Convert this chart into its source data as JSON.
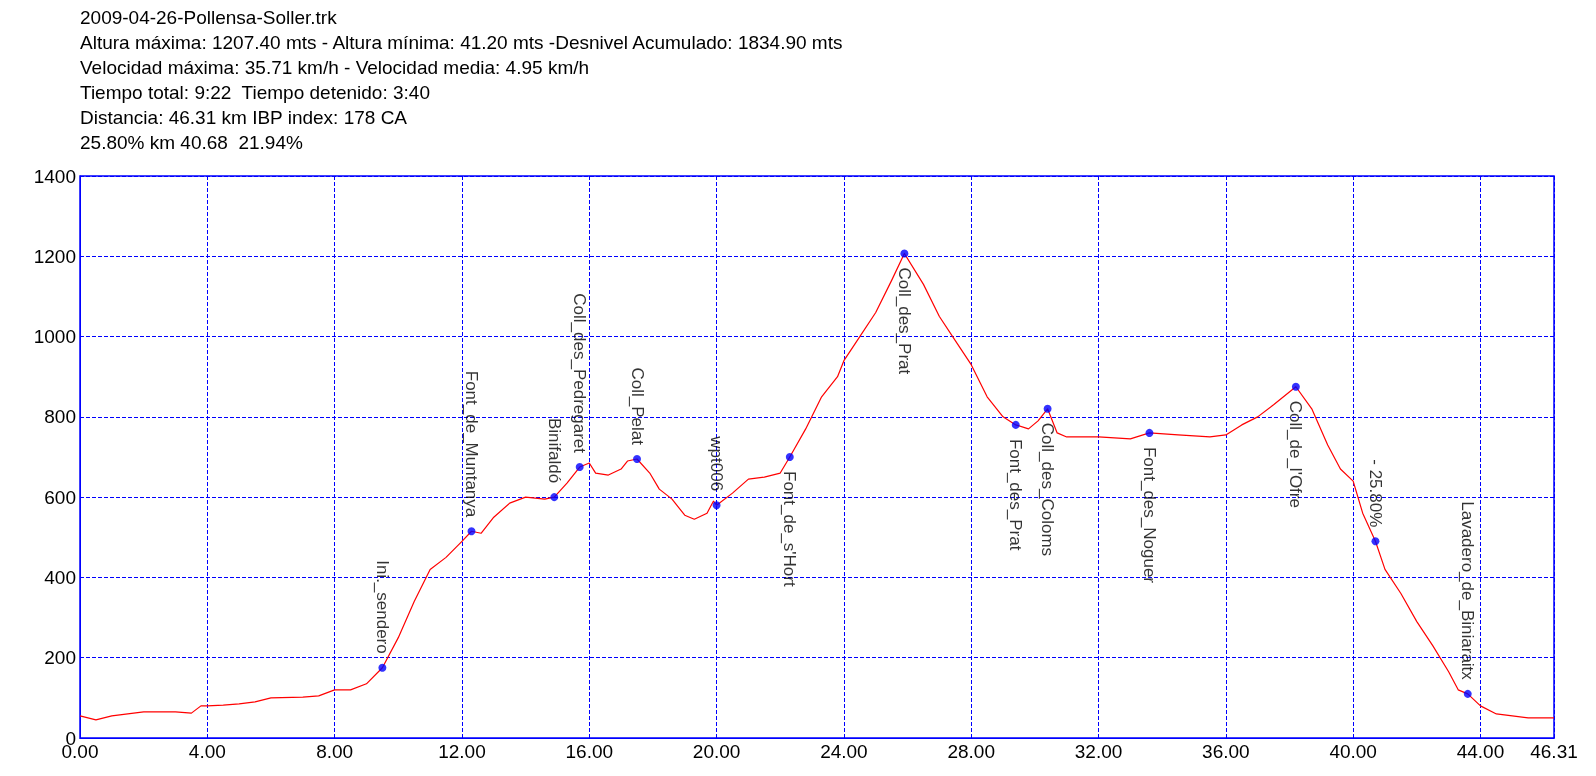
{
  "chart_data": {
    "type": "line",
    "title": "2009-04-26-Pollensa-Soller.trk",
    "annotations": [
      "Altura máxima: 1207.40 mts - Altura mínima: 41.20 mts -Desnivel Acumulado: 1834.90 mts",
      "Velocidad máxima: 35.71 km/h - Velocidad media: 4.95 km/h",
      "Tiempo total: 9:22  Tiempo detenido: 3:40",
      "Distancia: 46.31 km IBP index: 178 CA",
      "25.80% km 40.68  21.94%",
      {
        "text": "Ini._sendero",
        "x": 9.5,
        "y": 175
      },
      {
        "text": "Font_de_Muntanya",
        "x": 12.3,
        "y": 515
      },
      {
        "text": "Binifaldó",
        "x": 14.9,
        "y": 600
      },
      {
        "text": "Coll_des_Pedregaret",
        "x": 15.7,
        "y": 675
      },
      {
        "text": "Coll_Pelat",
        "x": 17.5,
        "y": 695
      },
      {
        "text": "wpt006",
        "x": 20.0,
        "y": 580
      },
      {
        "text": "Font_de_s'Hort",
        "x": 22.3,
        "y": 700
      },
      {
        "text": "Coll_des_Prat",
        "x": 25.9,
        "y": 1207
      },
      {
        "text": "Font_des_Prat",
        "x": 29.4,
        "y": 780
      },
      {
        "text": "Coll_des_Coloms",
        "x": 30.4,
        "y": 820
      },
      {
        "text": "Font_des_Noguer",
        "x": 33.6,
        "y": 760
      },
      {
        "text": "Coll_de_l'Ofre",
        "x": 38.2,
        "y": 875
      },
      {
        "text": "- 25.80%",
        "x": 40.7,
        "y": 490
      },
      {
        "text": "Lavadero_de_Biniaraitx",
        "x": 43.6,
        "y": 110
      }
    ],
    "series": [
      {
        "color": "#ff0000",
        "line_style": "solid",
        "x": [
          0,
          0.5,
          1,
          2,
          3,
          3.5,
          3.8,
          4,
          4.5,
          5,
          5.5,
          6,
          7,
          7.5,
          8,
          8.5,
          9,
          9.5,
          10,
          10.5,
          11,
          11.5,
          12,
          12.3,
          12.6,
          13,
          13.5,
          14,
          14.6,
          14.9,
          15.3,
          15.7,
          16,
          16.2,
          16.6,
          17,
          17.2,
          17.5,
          17.9,
          18.2,
          18.6,
          19,
          19.3,
          19.7,
          19.9,
          20,
          20.5,
          21,
          21.5,
          22,
          22.3,
          22.8,
          23.3,
          23.8,
          24,
          24.5,
          25,
          25.5,
          25.9,
          26.5,
          27,
          27.5,
          28,
          28.5,
          29,
          29.4,
          29.8,
          30.1,
          30.4,
          30.7,
          31,
          32,
          33,
          33.6,
          34.5,
          35.5,
          36,
          36.5,
          37,
          37.5,
          38.2,
          38.7,
          39.2,
          39.6,
          40,
          40.3,
          40.7,
          41,
          41.5,
          42,
          42.5,
          43,
          43.3,
          43.6,
          44,
          44.5,
          45,
          45.5,
          46.31
        ],
        "values": [
          55,
          45,
          55,
          65,
          65,
          62,
          80,
          80,
          82,
          85,
          90,
          100,
          102,
          105,
          120,
          120,
          135,
          175,
          250,
          340,
          420,
          450,
          490,
          515,
          510,
          550,
          585,
          600,
          595,
          600,
          635,
          675,
          685,
          660,
          655,
          670,
          690,
          695,
          660,
          620,
          595,
          555,
          545,
          560,
          590,
          580,
          610,
          645,
          650,
          660,
          700,
          770,
          850,
          900,
          940,
          1000,
          1060,
          1140,
          1207,
          1130,
          1050,
          990,
          930,
          850,
          800,
          780,
          770,
          790,
          820,
          760,
          750,
          750,
          745,
          760,
          755,
          750,
          755,
          780,
          800,
          830,
          875,
          820,
          730,
          670,
          640,
          560,
          490,
          420,
          360,
          290,
          230,
          165,
          120,
          110,
          80,
          60,
          55,
          50,
          50
        ]
      },
      {
        "type": "scatter",
        "color": "#0000ff",
        "marker": "circle",
        "x": [
          9.5,
          12.3,
          14.9,
          15.7,
          17.5,
          20.0,
          22.3,
          25.9,
          29.4,
          30.4,
          33.6,
          38.2,
          40.7,
          43.6
        ],
        "values": [
          175,
          515,
          600,
          675,
          695,
          580,
          700,
          1207,
          780,
          820,
          760,
          875,
          490,
          110
        ]
      }
    ],
    "xlim": [
      0,
      46.31
    ],
    "xticks": [
      {
        "value": 0,
        "label": "0.00"
      },
      {
        "value": 4,
        "label": "4.00"
      },
      {
        "value": 8,
        "label": "8.00"
      },
      {
        "value": 12,
        "label": "12.00"
      },
      {
        "value": 16,
        "label": "16.00"
      },
      {
        "value": 20,
        "label": "20.00"
      },
      {
        "value": 24,
        "label": "24.00"
      },
      {
        "value": 28,
        "label": "28.00"
      },
      {
        "value": 32,
        "label": "32.00"
      },
      {
        "value": 36,
        "label": "36.00"
      },
      {
        "value": 40,
        "label": "40.00"
      },
      {
        "value": 44,
        "label": "44.00"
      },
      {
        "value": 46.31,
        "label": "46.31"
      }
    ],
    "ylim": [
      0,
      1400
    ],
    "yticks": [
      0,
      200,
      400,
      600,
      800,
      1000,
      1200,
      1400
    ],
    "grid": true
  }
}
